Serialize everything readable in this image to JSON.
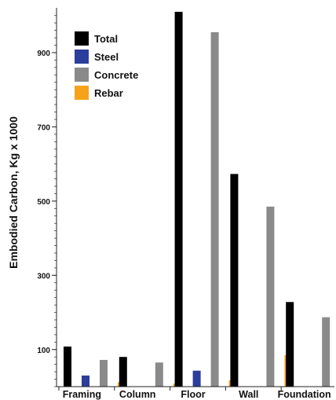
{
  "chart_data": {
    "type": "bar",
    "ylabel": "Embodied Carbon, Kg x 1000",
    "xlabel": "",
    "ylim": [
      0,
      1010
    ],
    "yticks": [
      100,
      300,
      500,
      700,
      900
    ],
    "categories": [
      "Framing",
      "Column",
      "Floor",
      "Wall",
      "Foundation"
    ],
    "legend_position": "top-left",
    "series": [
      {
        "name": "Total",
        "color": "#000000",
        "values": [
          108,
          80,
          1010,
          573,
          228
        ]
      },
      {
        "name": "Steel",
        "color": "#2b3e9c",
        "values": [
          30,
          0,
          43,
          0,
          0
        ]
      },
      {
        "name": "Concrete",
        "color": "#8a8a8a",
        "values": [
          72,
          65,
          955,
          485,
          187
        ]
      },
      {
        "name": "Rebar",
        "color": "#f7a21b",
        "values": [
          12,
          8,
          17,
          85,
          42
        ]
      }
    ]
  }
}
